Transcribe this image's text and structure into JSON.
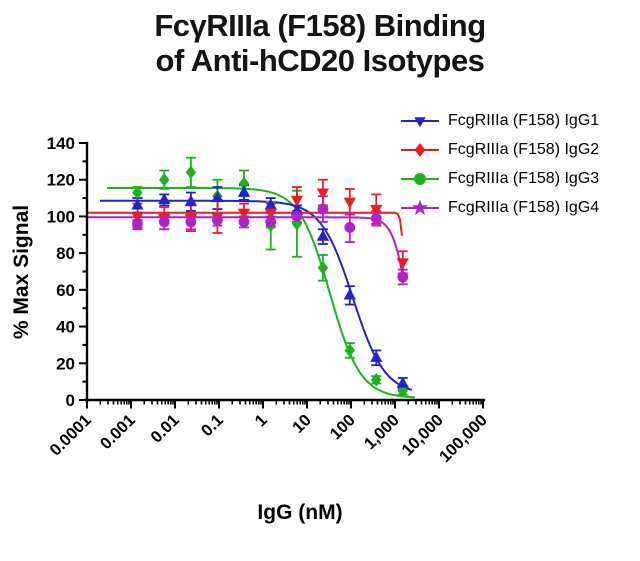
{
  "title": {
    "line1": "FcγRIIIa (F158) Binding",
    "line2": "of Anti-hCD20 Isotypes"
  },
  "legend": {
    "items": [
      {
        "label": "FcgRIIIa (F158) IgG1",
        "color": "#2222CE",
        "marker": "triangle-down"
      },
      {
        "label": "FcgRIIIa (F158) IgG2",
        "color": "#ED1C24",
        "marker": "diamond"
      },
      {
        "label": "FcgRIIIa (F158) IgG3",
        "color": "#1CB21C",
        "marker": "circle"
      },
      {
        "label": "FcgRIIIa (F158) IgG4",
        "color": "#AC23C9",
        "marker": "star"
      }
    ]
  },
  "chart_data": {
    "type": "scatter",
    "subtype": "dose-response curves with error bars and 4PL fit lines",
    "title": "FcγRIIIa (F158) Binding of Anti-hCD20 Isotypes",
    "xlabel": "IgG (nM)",
    "ylabel": "% Max Signal",
    "x_scale": "log10",
    "xlim": [
      0.0001,
      100000
    ],
    "ylim": [
      0,
      140
    ],
    "x_tick_labels": [
      "0.0001",
      "0.001",
      "0.01",
      "0.1",
      "1",
      "10",
      "100",
      "1,000",
      "10,000",
      "100,000"
    ],
    "y_ticks": [
      0,
      20,
      40,
      60,
      80,
      100,
      120,
      140
    ],
    "grid": false,
    "legend_position": "top-right",
    "x": [
      0.0014,
      0.0057,
      0.023,
      0.092,
      0.37,
      1.5,
      5.9,
      23,
      94,
      375,
      1500
    ],
    "series": [
      {
        "name": "FcgRIIIa (F158) IgG1",
        "color": "#2222CE",
        "plot_marker": "triangle-up",
        "values": [
          106,
          109,
          108,
          110,
          113,
          106,
          103,
          89,
          57,
          23,
          9
        ],
        "errors": [
          4,
          3,
          5,
          6,
          4,
          4,
          3,
          4,
          5,
          4,
          3
        ],
        "fit": {
          "top": 108.5,
          "bottom": 3,
          "ic50_nM": 110,
          "hill": 1.2
        }
      },
      {
        "name": "FcgRIIIa (F158) IgG2",
        "color": "#ED1C24",
        "plot_marker": "triangle-down",
        "values": [
          100,
          99,
          99,
          100,
          102,
          102,
          109,
          113,
          108,
          104,
          75
        ],
        "errors": [
          7,
          6,
          7,
          9,
          5,
          5,
          7,
          7,
          7,
          8,
          6
        ],
        "fit": {
          "top": 102,
          "bottom": 55,
          "ic50_nM": 1550,
          "hill": 14
        }
      },
      {
        "name": "FcgRIIIa (F158) IgG3",
        "color": "#1CB21C",
        "plot_marker": "diamond",
        "values": [
          113,
          120,
          124,
          111,
          118,
          95,
          96,
          72,
          27,
          11,
          5
        ],
        "errors": [
          3,
          5,
          8,
          9,
          7,
          13,
          18,
          7,
          4,
          2,
          2
        ],
        "fit": {
          "top": 115.5,
          "bottom": 1,
          "ic50_nM": 33,
          "hill": 1.25
        }
      },
      {
        "name": "FcgRIIIa (F158) IgG4",
        "color": "#AC23C9",
        "plot_marker": "circle",
        "values": [
          96,
          97,
          97,
          98,
          97,
          97,
          100,
          104,
          94,
          99,
          67
        ],
        "errors": [
          2,
          4,
          4,
          3,
          3,
          3,
          3,
          7,
          8,
          4,
          4
        ],
        "fit": {
          "top": 99.5,
          "bottom": 0,
          "ic50_nM": 2000,
          "hill": 2.6
        }
      }
    ]
  }
}
